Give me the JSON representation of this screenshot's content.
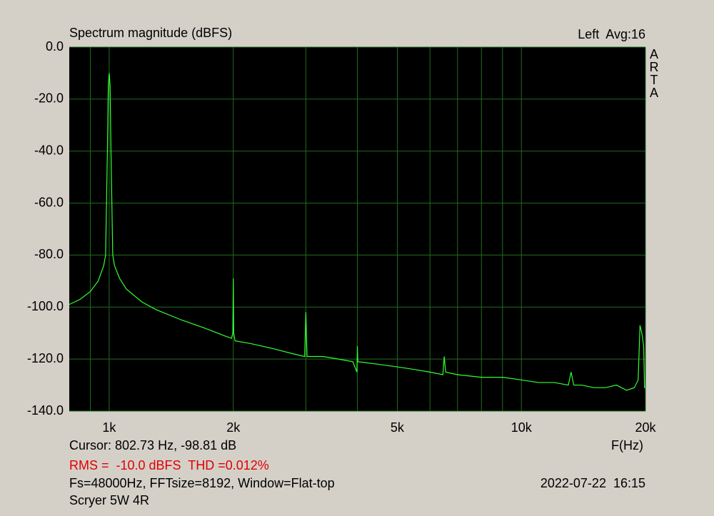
{
  "chart_data": {
    "type": "line",
    "title": "Spectrum magnitude (dBFS)",
    "channel_label": "Left  Avg:16",
    "side_label": "ARTA",
    "x_label": "F(Hz)",
    "cursor_text": "Cursor: 802.73 Hz, -98.81 dB",
    "measurement_text": "RMS =  -10.0 dBFS  THD =0.012%",
    "settings_text": "Fs=48000Hz, FFTsize=8192, Window=Flat-top",
    "timestamp": "2022-07-22  16:15",
    "device_label": "Scryer 5W 4R",
    "x_scale": "log",
    "xlim": [
      800,
      20000
    ],
    "ylim": [
      -140,
      0
    ],
    "xticks": [
      {
        "value": 1000,
        "label": "1k"
      },
      {
        "value": 2000,
        "label": "2k"
      },
      {
        "value": 5000,
        "label": "5k"
      },
      {
        "value": 10000,
        "label": "10k"
      },
      {
        "value": 20000,
        "label": "20k"
      }
    ],
    "xgrid_minor": [
      900,
      3000,
      4000,
      6000,
      7000,
      8000,
      9000
    ],
    "yticks": [
      {
        "value": 0,
        "label": "0.0"
      },
      {
        "value": -20,
        "label": "-20.0"
      },
      {
        "value": -40,
        "label": "-40.0"
      },
      {
        "value": -60,
        "label": "-60.0"
      },
      {
        "value": -80,
        "label": "-80.0"
      },
      {
        "value": -100,
        "label": "-100.0"
      },
      {
        "value": -120,
        "label": "-120.0"
      },
      {
        "value": -140,
        "label": "-140.0"
      }
    ],
    "grid": true,
    "grid_color": "#1e6e1e",
    "plot_background": "#000000",
    "color": "#33ff33",
    "x": [
      800,
      850,
      900,
      940,
      970,
      980,
      990,
      995,
      1000,
      1005,
      1010,
      1020,
      1030,
      1060,
      1100,
      1200,
      1300,
      1500,
      1700,
      1900,
      1980,
      1995,
      2000,
      2005,
      2020,
      2200,
      2500,
      2800,
      2980,
      3000,
      3020,
      3300,
      3600,
      3900,
      3990,
      4000,
      4010,
      4500,
      5000,
      5500,
      6000,
      6450,
      6500,
      6550,
      7000,
      8000,
      9000,
      10000,
      11000,
      12000,
      13000,
      13200,
      13400,
      14000,
      15000,
      16000,
      17000,
      18000,
      18800,
      19200,
      19400,
      19600,
      19800,
      19900,
      20000
    ],
    "values": [
      -99,
      -97,
      -94,
      -90,
      -84,
      -80,
      -40,
      -15,
      -10,
      -15,
      -40,
      -80,
      -84,
      -89,
      -93,
      -98,
      -101,
      -105,
      -108,
      -111,
      -112,
      -110,
      -89,
      -110,
      -113,
      -114,
      -116,
      -118,
      -119,
      -102,
      -119,
      -119,
      -120,
      -121,
      -125,
      -115,
      -121,
      -122,
      -123,
      -124,
      -125,
      -126,
      -119,
      -125,
      -126,
      -127,
      -127,
      -128,
      -129,
      -129,
      -130,
      -125,
      -130,
      -130,
      -131,
      -131,
      -130,
      -132,
      -131,
      -128,
      -107,
      -110,
      -115,
      -131,
      -131
    ]
  }
}
